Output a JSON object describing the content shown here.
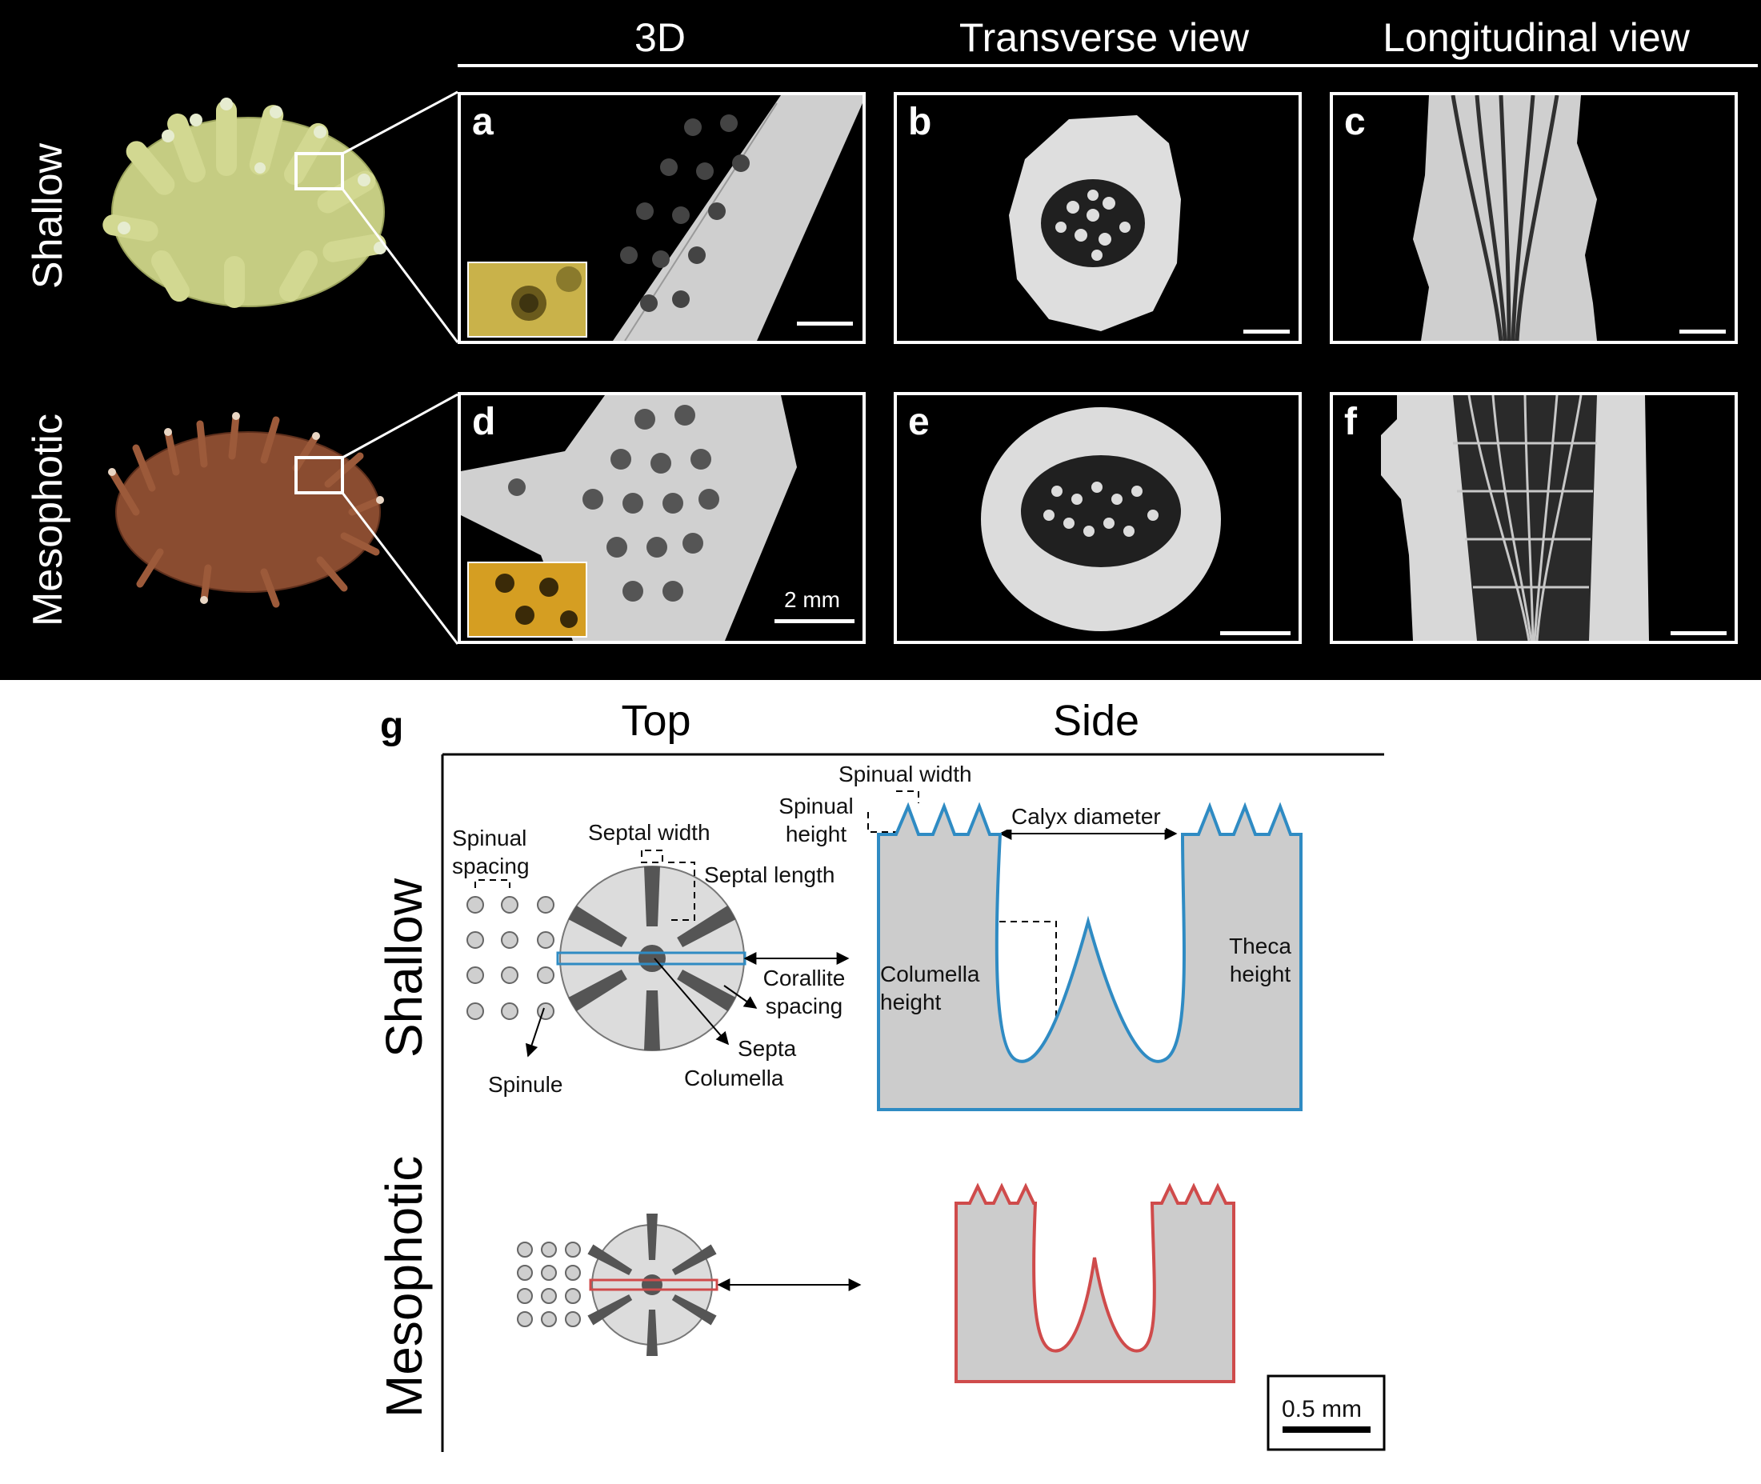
{
  "panel_labels": [
    "a",
    "b",
    "c",
    "d",
    "e",
    "f",
    "g"
  ],
  "columns": {
    "three_d": "3D",
    "transverse": "Transverse view",
    "longitudinal": "Longitudinal view"
  },
  "rows": {
    "shallow": "Shallow",
    "mesophotic": "Mesophotic"
  },
  "scale_bars": {
    "top_panels": "2 mm",
    "schematic": "0.5 mm"
  },
  "schematic": {
    "views": {
      "top": "Top",
      "side": "Side"
    },
    "rows": {
      "shallow": "Shallow",
      "mesophotic": "Mesophotic"
    },
    "annotations": {
      "spinual_spacing": "Spinual spacing",
      "septal_width": "Septal width",
      "septal_length": "Septal length",
      "corallite_spacing": "Corallite spacing",
      "septa": "Septa",
      "columella": "Columella",
      "spinule": "Spinule",
      "spinual_width": "Spinual width",
      "spinual_height": "Spinual height",
      "calyx_diameter": "Calyx diameter",
      "columella_height": "Columella height",
      "theca_height": "Theca height"
    }
  },
  "colors": {
    "shallow": "#2f8bc3",
    "mesophotic": "#cf4b4b",
    "coral_shallow": "#c9cf84",
    "coral_mesophotic": "#8c4a2c",
    "skeleton_fill": "#cccccc",
    "septa": "#555555"
  }
}
